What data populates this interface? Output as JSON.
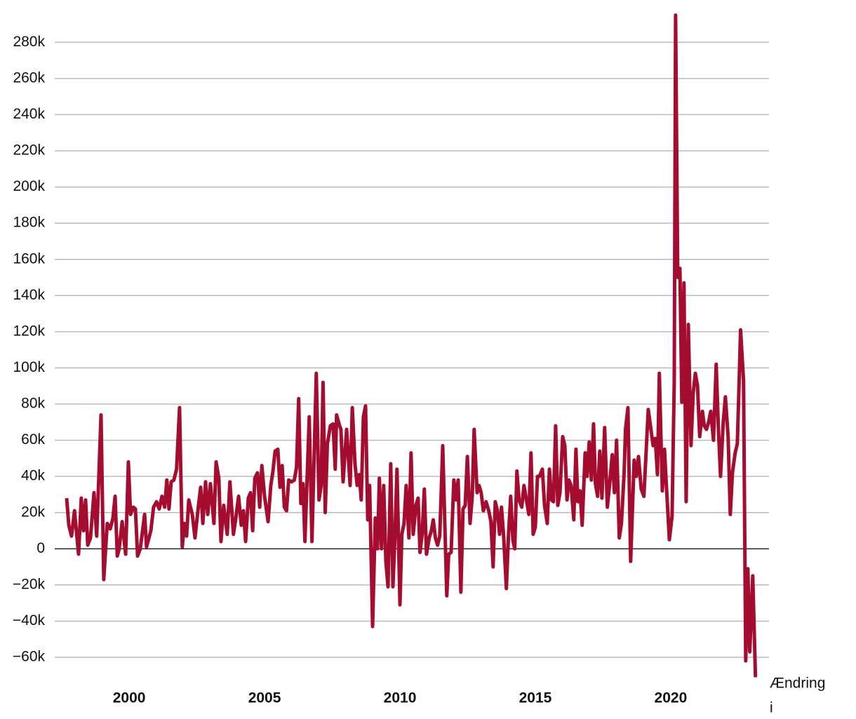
{
  "chart_data": {
    "type": "line",
    "xlabel": [
      "Ændring",
      "i"
    ],
    "color": "#a50d30",
    "grid": true,
    "xlim": [
      1997.25,
      2023.63
    ],
    "xticks": [
      2000,
      2005,
      2010,
      2015,
      2020
    ],
    "ylim": [
      -72,
      296
    ],
    "yticks": [
      {
        "value": -60,
        "label": "−60k"
      },
      {
        "value": -40,
        "label": "−40k"
      },
      {
        "value": -20,
        "label": "−20k"
      },
      0,
      {
        "value": 20,
        "label": "20k"
      },
      {
        "value": 40,
        "label": "40k"
      },
      {
        "value": 60,
        "label": "60k"
      },
      {
        "value": 80,
        "label": "80k"
      },
      {
        "value": 100,
        "label": "100k"
      },
      {
        "value": 120,
        "label": "120k"
      },
      {
        "value": 140,
        "label": "140k"
      },
      {
        "value": 160,
        "label": "160k"
      },
      {
        "value": 180,
        "label": "180k"
      },
      {
        "value": 200,
        "label": "200k"
      },
      {
        "value": 220,
        "label": "220k"
      },
      {
        "value": 240,
        "label": "240k"
      },
      {
        "value": 260,
        "label": "260k"
      },
      {
        "value": 280,
        "label": "280k"
      }
    ],
    "x": [
      1997.69,
      1997.77,
      1997.87,
      1997.98,
      1998.13,
      1998.23,
      1998.31,
      1998.39,
      1998.47,
      1998.57,
      1998.7,
      1998.8,
      1998.96,
      1999.06,
      1999.19,
      1999.3,
      1999.4,
      1999.48,
      1999.56,
      1999.63,
      1999.74,
      1999.87,
      1999.97,
      2000.05,
      2000.15,
      2000.23,
      2000.31,
      2000.41,
      2000.57,
      2000.64,
      2000.8,
      2000.9,
      2001.01,
      2001.11,
      2001.21,
      2001.31,
      2001.39,
      2001.47,
      2001.55,
      2001.65,
      2001.75,
      2001.86,
      2001.96,
      2002.04,
      2002.12,
      2002.2,
      2002.33,
      2002.43,
      2002.56,
      2002.64,
      2002.72,
      2002.82,
      2002.9,
      2003.0,
      2003.13,
      2003.21,
      2003.31,
      2003.39,
      2003.49,
      2003.62,
      2003.72,
      2003.85,
      2003.93,
      2004.04,
      2004.14,
      2004.22,
      2004.3,
      2004.4,
      2004.48,
      2004.56,
      2004.64,
      2004.74,
      2004.82,
      2004.9,
      2005.0,
      2005.13,
      2005.23,
      2005.31,
      2005.39,
      2005.49,
      2005.57,
      2005.65,
      2005.73,
      2005.81,
      2005.89,
      2006.0,
      2006.1,
      2006.18,
      2006.26,
      2006.34,
      2006.42,
      2006.49,
      2006.65,
      2006.75,
      2006.91,
      2007.01,
      2007.09,
      2007.16,
      2007.24,
      2007.32,
      2007.43,
      2007.53,
      2007.61,
      2007.66,
      2007.77,
      2007.82,
      2007.9,
      2008.03,
      2008.16,
      2008.24,
      2008.34,
      2008.42,
      2008.5,
      2008.57,
      2008.65,
      2008.73,
      2008.81,
      2008.88,
      2008.99,
      2009.09,
      2009.17,
      2009.24,
      2009.32,
      2009.4,
      2009.48,
      2009.56,
      2009.66,
      2009.74,
      2009.81,
      2009.89,
      2010.0,
      2010.07,
      2010.15,
      2010.23,
      2010.33,
      2010.41,
      2010.49,
      2010.59,
      2010.67,
      2010.74,
      2010.82,
      2010.9,
      2010.98,
      2011.08,
      2011.16,
      2011.23,
      2011.31,
      2011.39,
      2011.47,
      2011.58,
      2011.65,
      2011.73,
      2011.8,
      2011.89,
      2011.99,
      2012.07,
      2012.15,
      2012.25,
      2012.33,
      2012.41,
      2012.49,
      2012.59,
      2012.67,
      2012.74,
      2012.85,
      2012.92,
      2013.0,
      2013.08,
      2013.18,
      2013.28,
      2013.36,
      2013.44,
      2013.52,
      2013.6,
      2013.68,
      2013.75,
      2013.83,
      2013.93,
      2014.01,
      2014.09,
      2014.17,
      2014.24,
      2014.32,
      2014.4,
      2014.5,
      2014.58,
      2014.66,
      2014.76,
      2014.84,
      2014.92,
      2015.0,
      2015.08,
      2015.15,
      2015.26,
      2015.34,
      2015.44,
      2015.52,
      2015.6,
      2015.67,
      2015.75,
      2015.83,
      2015.91,
      2016.01,
      2016.09,
      2016.17,
      2016.24,
      2016.32,
      2016.42,
      2016.5,
      2016.57,
      2016.65,
      2016.73,
      2016.84,
      2016.91,
      2016.99,
      2017.07,
      2017.15,
      2017.22,
      2017.3,
      2017.38,
      2017.46,
      2017.56,
      2017.66,
      2017.74,
      2017.84,
      2017.92,
      2018.0,
      2018.1,
      2018.18,
      2018.28,
      2018.33,
      2018.42,
      2018.52,
      2018.65,
      2018.73,
      2018.81,
      2018.91,
      2019.01,
      2019.17,
      2019.27,
      2019.35,
      2019.43,
      2019.51,
      2019.58,
      2019.69,
      2019.77,
      2019.84,
      2019.95,
      2020.05,
      2020.13,
      2020.18,
      2020.26,
      2020.34,
      2020.41,
      2020.49,
      2020.57,
      2020.65,
      2020.75,
      2020.83,
      2020.91,
      2020.99,
      2021.07,
      2021.17,
      2021.24,
      2021.32,
      2021.4,
      2021.48,
      2021.58,
      2021.68,
      2021.76,
      2021.84,
      2021.94,
      2022.02,
      2022.12,
      2022.2,
      2022.28,
      2022.38,
      2022.46,
      2022.53,
      2022.58,
      2022.69,
      2022.77,
      2022.85,
      2022.92,
      2023.03,
      2023.13
    ],
    "values": [
      28,
      13,
      7,
      21,
      -3,
      28,
      10,
      27,
      2,
      6,
      31,
      7,
      74,
      -17,
      14,
      11,
      17,
      29,
      -4,
      0,
      15,
      -3,
      48,
      19,
      23,
      22,
      -4,
      0,
      19,
      1,
      10,
      23,
      26,
      22,
      29,
      23,
      38,
      22,
      37,
      38,
      44,
      78,
      1,
      14,
      7,
      27,
      19,
      6,
      24,
      34,
      14,
      37,
      19,
      36,
      14,
      48,
      39,
      4,
      24,
      8,
      37,
      8,
      16,
      29,
      13,
      21,
      4,
      28,
      31,
      10,
      39,
      42,
      23,
      46,
      29,
      15,
      35,
      43,
      54,
      55,
      34,
      46,
      23,
      21,
      38,
      37,
      38,
      45,
      83,
      25,
      36,
      4,
      73,
      4,
      97,
      27,
      35,
      92,
      20,
      58,
      68,
      69,
      44,
      74,
      68,
      66,
      37,
      66,
      35,
      78,
      47,
      35,
      41,
      27,
      73,
      79,
      16,
      35,
      -43,
      17,
      0,
      39,
      0,
      35,
      -7,
      -21,
      47,
      -21,
      4,
      44,
      -31,
      8,
      14,
      35,
      6,
      53,
      8,
      24,
      28,
      -2,
      8,
      33,
      -3,
      6,
      10,
      16,
      6,
      2,
      7,
      57,
      18,
      -26,
      -3,
      -2,
      38,
      27,
      38,
      -24,
      22,
      24,
      51,
      14,
      29,
      66,
      31,
      35,
      31,
      21,
      26,
      21,
      15,
      -10,
      26,
      21,
      8,
      23,
      7,
      -22,
      8,
      29,
      5,
      0,
      43,
      27,
      23,
      35,
      28,
      19,
      53,
      8,
      12,
      40,
      40,
      44,
      24,
      14,
      44,
      27,
      26,
      68,
      24,
      31,
      62,
      57,
      27,
      38,
      35,
      16,
      55,
      26,
      32,
      13,
      53,
      40,
      59,
      38,
      69,
      36,
      29,
      54,
      28,
      67,
      23,
      35,
      52,
      31,
      60,
      6,
      14,
      42,
      66,
      78,
      -7,
      49,
      40,
      51,
      33,
      29,
      77,
      66,
      57,
      61,
      41,
      97,
      32,
      55,
      35,
      5,
      18,
      92,
      295,
      150,
      155,
      81,
      147,
      26,
      124,
      57,
      86,
      97,
      90,
      62,
      76,
      68,
      66,
      70,
      76,
      60,
      102,
      67,
      40,
      70,
      84,
      62,
      19,
      42,
      53,
      58,
      94,
      121,
      93,
      -62,
      -11,
      -57,
      -15,
      -71
    ]
  }
}
